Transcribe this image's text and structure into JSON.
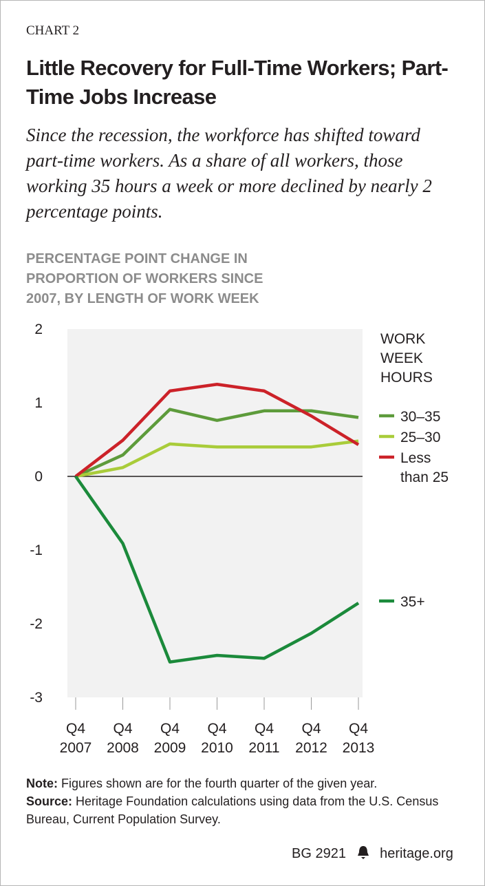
{
  "chart_data": {
    "type": "line",
    "label": "CHART 2",
    "title": "Little Recovery for Full-Time Workers; Part-Time Jobs Increase",
    "subtitle": "Since the recession, the workforce has shifted toward part-time workers. As a share of all workers, those working 35 hours a week or more declined by nearly 2 percentage points.",
    "y_axis_title": "PERCENTAGE POINT CHANGE IN PROPORTION OF WORKERS SINCE 2007, BY LENGTH OF WORK WEEK",
    "legend_title": "WORK WEEK HOURS",
    "categories": [
      "Q4 2007",
      "Q4 2008",
      "Q4 2009",
      "Q4 2010",
      "Q4 2011",
      "Q4 2012",
      "Q4 2013"
    ],
    "series": [
      {
        "name": "30–35",
        "color": "#5d9b3b",
        "values": [
          0,
          0.29,
          0.91,
          0.76,
          0.89,
          0.89,
          0.8
        ]
      },
      {
        "name": "25–30",
        "color": "#a9cc3a",
        "values": [
          0,
          0.12,
          0.44,
          0.4,
          0.4,
          0.4,
          0.48
        ]
      },
      {
        "name": "Less than 25",
        "color": "#cc2229",
        "values": [
          0,
          0.49,
          1.16,
          1.25,
          1.16,
          0.82,
          0.43
        ]
      },
      {
        "name": "35+",
        "color": "#1b8a3b",
        "values": [
          0,
          -0.91,
          -2.52,
          -2.43,
          -2.47,
          -2.13,
          -1.72
        ]
      }
    ],
    "ylim": [
      -3,
      2
    ],
    "yticks": [
      2,
      1,
      0,
      -1,
      -2,
      -3
    ],
    "grid": false,
    "note_label": "Note:",
    "note": "Figures shown are for the fourth quarter of the given year.",
    "source_label": "Source:",
    "source": "Heritage Foundation calculations using data from the U.S. Census Bureau, Current Population Survey.",
    "report_id": "BG 2921",
    "site": "heritage.org"
  }
}
